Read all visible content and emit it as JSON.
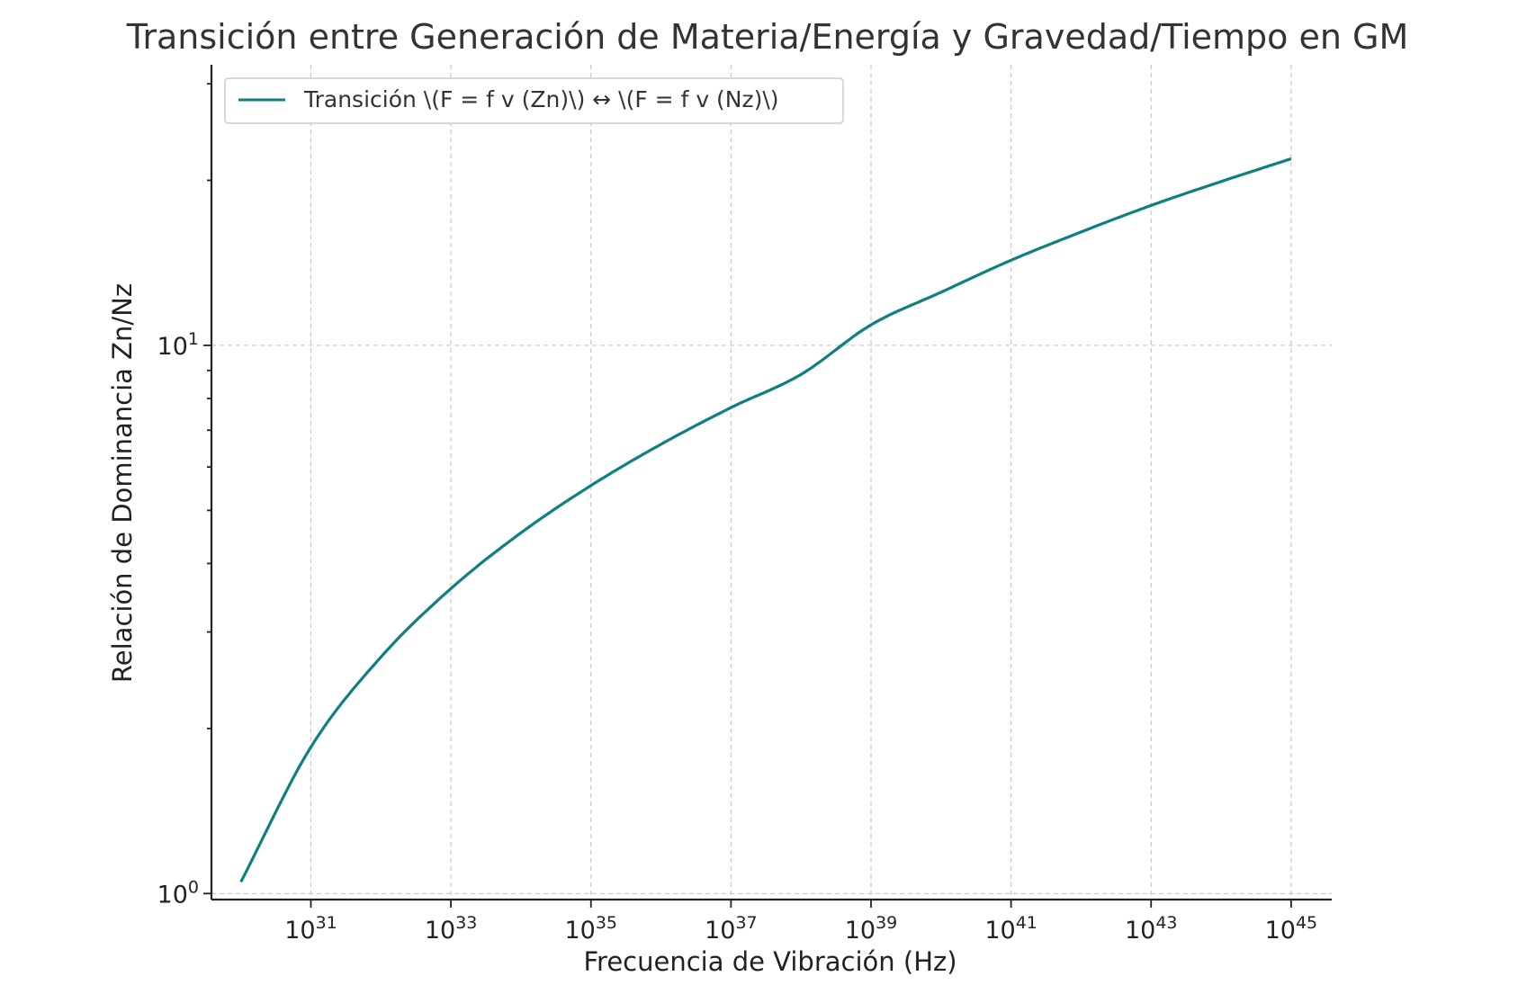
{
  "chart_data": {
    "type": "line",
    "title": "Transición entre Generación de Materia/Energía y Gravedad/Tiempo en GM",
    "xlabel": "Frecuencia de Vibración (Hz)",
    "ylabel": "Relación de Dominancia Zn/Nz",
    "xscale": "log",
    "yscale": "log",
    "xlim": [
      1e+30,
      1e+45
    ],
    "ylim": [
      0.98,
      30
    ],
    "grid": true,
    "legend_position": "top-left",
    "x_ticks": [
      {
        "base": "10",
        "exp": "31",
        "value": 1e+31
      },
      {
        "base": "10",
        "exp": "33",
        "value": 1e+33
      },
      {
        "base": "10",
        "exp": "35",
        "value": 1e+35
      },
      {
        "base": "10",
        "exp": "37",
        "value": 1e+37
      },
      {
        "base": "10",
        "exp": "39",
        "value": 1e+39
      },
      {
        "base": "10",
        "exp": "41",
        "value": 1e+41
      },
      {
        "base": "10",
        "exp": "43",
        "value": 1e+43
      },
      {
        "base": "10",
        "exp": "45",
        "value": 1e+45
      }
    ],
    "y_ticks": [
      {
        "base": "10",
        "exp": "0",
        "value": 1
      },
      {
        "base": "10",
        "exp": "1",
        "value": 10
      }
    ],
    "series": [
      {
        "name": "Transición \\(F = f v (Zn)\\) ↔ \\(F = f v (Nz)\\)",
        "color": "#0f7f7f",
        "x": [
          1e+30,
          1e+31,
          1e+32,
          1e+33,
          1e+34,
          1e+35,
          1e+36,
          1e+37,
          1e+38,
          1e+39,
          1e+40,
          1e+41,
          1e+42,
          1e+43,
          1e+44,
          1e+45
        ],
        "y": [
          1.05,
          1.85,
          2.7,
          3.6,
          4.55,
          5.55,
          6.6,
          7.7,
          8.85,
          10.9,
          12.5,
          14.3,
          16.1,
          18.0,
          19.9,
          21.9
        ]
      }
    ]
  }
}
